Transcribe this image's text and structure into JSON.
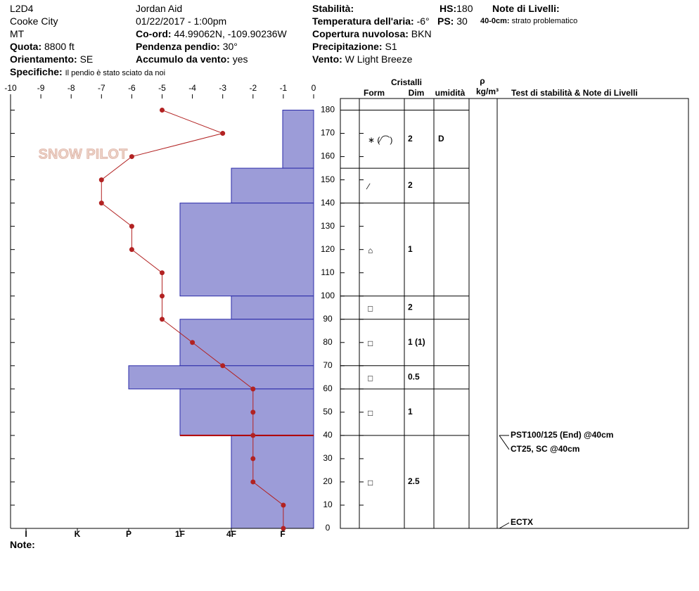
{
  "header": {
    "site": "L2D4",
    "place": "Cooke City",
    "state": "MT",
    "observer": "Jordan Aid",
    "date": "01/22/2017 - 1:00pm",
    "elevation": {
      "label": "Quota:",
      "value": "8800 ft"
    },
    "aspect": {
      "label": "Orientamento:",
      "value": "SE"
    },
    "comments": {
      "label": "Specifiche:",
      "value": "Il pendio è stato sciato da noi"
    },
    "coords": {
      "label": "Co-ord:",
      "value": "44.99062N, -109.90236W"
    },
    "slope": {
      "label": "Pendenza pendio:",
      "value": "30°"
    },
    "wind_loading": {
      "label": "Accumulo da vento:",
      "value": "yes"
    },
    "stability": {
      "label": "Stabilità:"
    },
    "air_temp": {
      "label": "Temperatura dell'aria:",
      "value": "-6°C"
    },
    "sky": {
      "label": "Copertura nuvolosa:",
      "value": "BKN"
    },
    "precip": {
      "label": "Precipitazione:",
      "value": "S1"
    },
    "wind": {
      "label": "Vento:",
      "value": "W Light Breeze"
    },
    "hs": {
      "label": "HS:",
      "value": "180"
    },
    "ps": {
      "label": "PS:",
      "value": "30"
    },
    "layer_notes": {
      "label": "Note di Livelli:",
      "items": [
        {
          "range": "40-0cm:",
          "text": "strato problematico"
        }
      ]
    }
  },
  "note_label": "Note:",
  "logo": "SNOW PILOT",
  "chart_data": {
    "type": "snow-profile",
    "xlim": [
      -10,
      0
    ],
    "xticks": [
      -10,
      -9,
      -8,
      -7,
      -6,
      -5,
      -4,
      -3,
      -2,
      -1,
      0
    ],
    "ylim": [
      0,
      185
    ],
    "yticks": [
      0,
      10,
      20,
      30,
      40,
      50,
      60,
      70,
      80,
      90,
      100,
      110,
      120,
      130,
      140,
      150,
      160,
      170,
      180
    ],
    "hardness_scale": [
      "I",
      "K",
      "P",
      "1F",
      "4F",
      "F"
    ],
    "color": "#9c9cd8",
    "line_color": "#b22222",
    "layers": [
      {
        "top": 180,
        "bottom": 155,
        "hardness": "F",
        "form": "∗ (∕⌒)",
        "size": "2",
        "moisture": "D"
      },
      {
        "top": 155,
        "bottom": 140,
        "hardness": "4F",
        "form": "∕",
        "size": "2"
      },
      {
        "top": 140,
        "bottom": 100,
        "hardness": "1F",
        "form": "⌂",
        "size": "1"
      },
      {
        "top": 100,
        "bottom": 90,
        "hardness": "4F",
        "form": "□",
        "size": "2"
      },
      {
        "top": 90,
        "bottom": 70,
        "hardness": "1F",
        "form": "□",
        "size": "1 (1)"
      },
      {
        "top": 70,
        "bottom": 60,
        "hardness": "P",
        "form": "□",
        "size": "0.5"
      },
      {
        "top": 60,
        "bottom": 40,
        "hardness": "1F",
        "form": "□",
        "size": "1"
      },
      {
        "top": 40,
        "bottom": 0,
        "hardness": "4F",
        "form": "□",
        "size": "2.5"
      }
    ],
    "temperature": {
      "heights": [
        180,
        170,
        160,
        150,
        140,
        130,
        120,
        110,
        100,
        90,
        80,
        70,
        60,
        50,
        40,
        30,
        20,
        10,
        0
      ],
      "values": [
        -5,
        -3,
        -6,
        -7,
        -7,
        -6,
        -6,
        -5,
        -5,
        -5,
        -4,
        -3,
        -2,
        -2,
        -2,
        -2,
        -2,
        -1,
        -1
      ]
    },
    "table_headers": {
      "crystals": "Cristalli",
      "form": "Form",
      "size": "Dim",
      "moisture": "umidità",
      "density": "ρ",
      "density_unit": "kg/m³",
      "tests": "Test di stabilità & Note di Livelli"
    },
    "tests": [
      {
        "text": "PST100/125 (End) @40cm",
        "height": 40
      },
      {
        "text": "CT25, SC @40cm",
        "height": 40
      },
      {
        "text": "ECTX",
        "height": 0
      }
    ]
  }
}
